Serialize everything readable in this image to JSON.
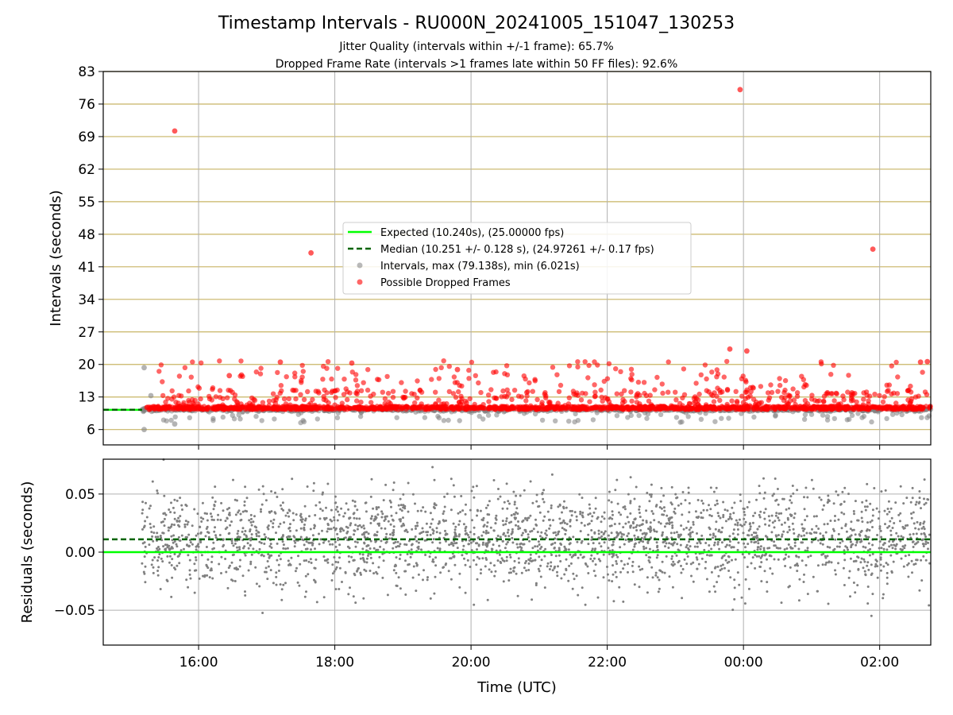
{
  "figure": {
    "title": "Timestamp Intervals - RU000N_20241005_151047_130253",
    "subtitle_1": "Jitter Quality (intervals within +/-1 frame): 65.7%",
    "subtitle_2": "Dropped Frame Rate (intervals >1 frames late within 50 FF files): 92.6%"
  },
  "colors": {
    "expected": "#00ff00",
    "median": "#006400",
    "intervals": "#808080",
    "dropped": "#ff0000",
    "hgrid_top": "#c8b464",
    "grid": "#b0b0b0"
  },
  "chart_data": [
    {
      "type": "scatter",
      "panel": "intervals",
      "ylabel": "Intervals (seconds)",
      "xlabel": "",
      "x_unit": "hours since 00:00 UTC of the first day (wrapping past midnight)",
      "xlim_hours": [
        14.6,
        26.75
      ],
      "ylim": [
        2.7,
        83
      ],
      "y_ticks": [
        6,
        13,
        20,
        27,
        34,
        41,
        48,
        55,
        62,
        69,
        76,
        83
      ],
      "x_ticks": [
        {
          "hour": 16,
          "label": "16:00"
        },
        {
          "hour": 18,
          "label": "18:00"
        },
        {
          "hour": 20,
          "label": "20:00"
        },
        {
          "hour": 22,
          "label": "22:00"
        },
        {
          "hour": 24,
          "label": "00:00"
        },
        {
          "hour": 26,
          "label": "02:00"
        }
      ],
      "grid": "on",
      "legend_placement": "center",
      "legend": [
        {
          "label": "Expected (10.240s), (25.00000 fps)",
          "style": "solid-line"
        },
        {
          "label": "Median (10.251 +/- 0.128 s), (24.97261 +/- 0.17 fps)",
          "style": "dashed-line"
        },
        {
          "label": "Intervals, max (79.138s), min (6.021s)",
          "style": "gray-dot"
        },
        {
          "label": "Possible Dropped Frames",
          "style": "red-dot"
        }
      ],
      "expected_interval": 10.24,
      "median_interval": 10.251,
      "data_time_range_hours": [
        15.17,
        26.75
      ],
      "series_outliers": [
        {
          "name": "Possible Dropped Frames",
          "points": [
            [
              15.65,
              70.2
            ],
            [
              17.65,
              44.0
            ],
            [
              23.95,
              79.1
            ],
            [
              25.9,
              44.8
            ],
            [
              23.8,
              23.3
            ],
            [
              24.05,
              22.9
            ],
            [
              26.7,
              20.6
            ],
            [
              26.6,
              20.5
            ],
            [
              16.45,
              17.6
            ],
            [
              19.8,
              18.9
            ],
            [
              17.2,
              20.5
            ],
            [
              18.25,
              20.3
            ]
          ]
        },
        {
          "name": "Intervals",
          "points": [
            [
              15.2,
              19.3
            ],
            [
              15.2,
              6.0
            ],
            [
              15.3,
              13.3
            ],
            [
              15.65,
              7.2
            ]
          ]
        }
      ]
    },
    {
      "type": "scatter",
      "panel": "residuals",
      "ylabel": "Residuals (seconds)",
      "xlabel": "Time (UTC)",
      "xlim_hours": [
        14.6,
        26.75
      ],
      "ylim": [
        -0.08,
        0.08
      ],
      "y_ticks": [
        {
          "value": 0.05,
          "label": "0.05"
        },
        {
          "value": 0.0,
          "label": "0.00"
        },
        {
          "value": -0.05,
          "label": "−0.05"
        }
      ],
      "expected_residual": 0.0,
      "median_residual": 0.011,
      "residual_spread_sd": 0.03
    }
  ]
}
